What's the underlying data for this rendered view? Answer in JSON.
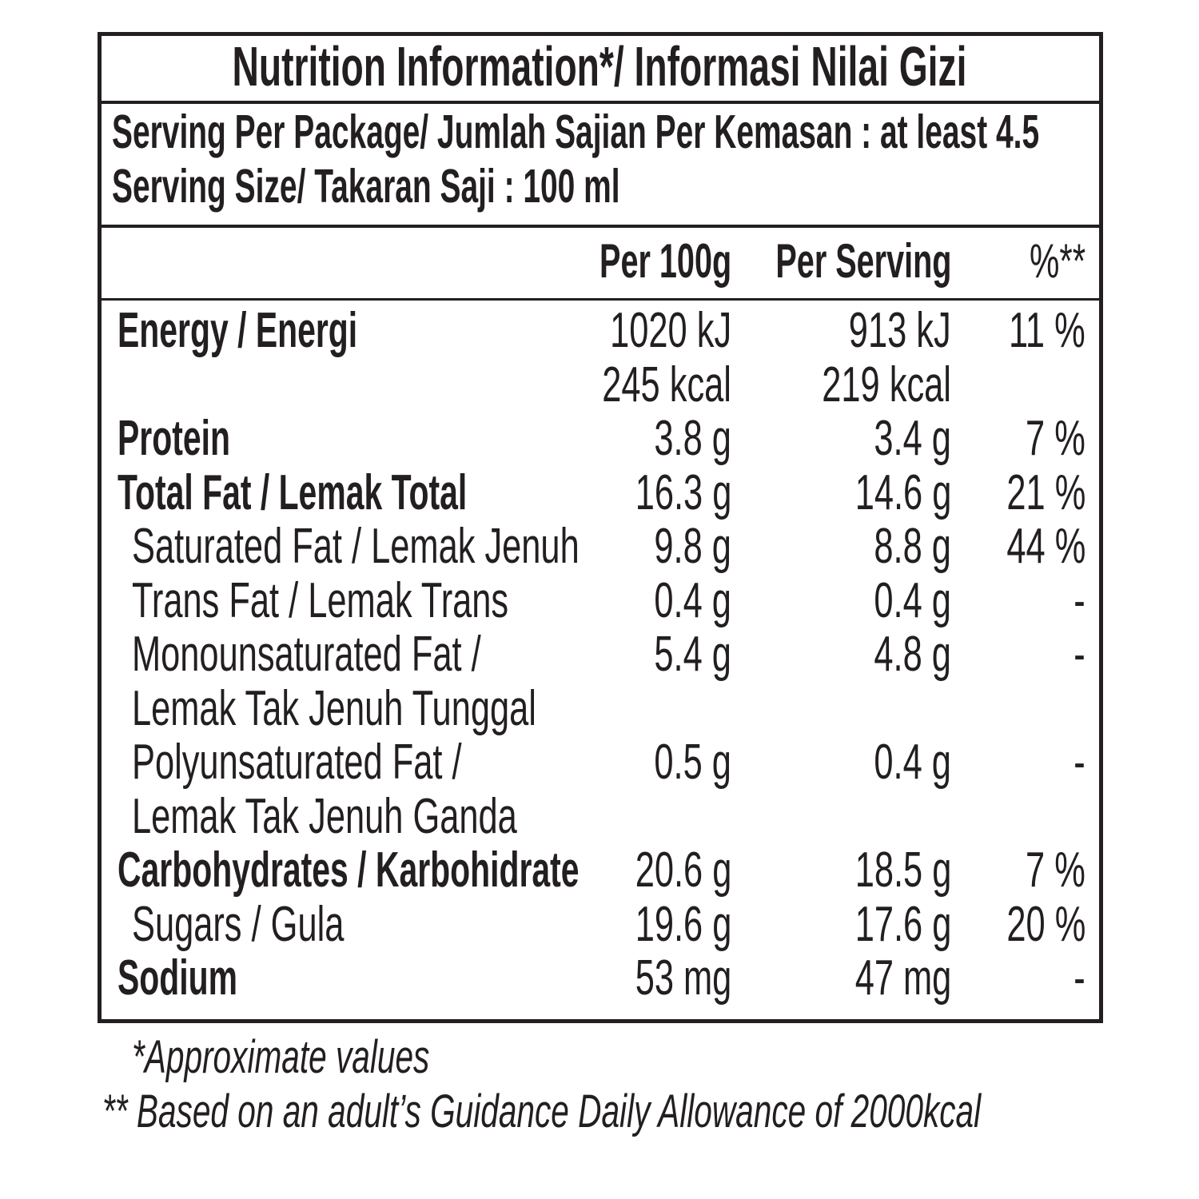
{
  "title": "Nutrition Information*/  Informasi Nilai Gizi",
  "serving_per_package": "Serving Per Package/ Jumlah Sajian Per Kemasan : at least 4.5",
  "serving_size": "Serving Size/ Takaran Saji : 100 ml",
  "columns": {
    "per100": "Per 100g",
    "per_serving": "Per Serving",
    "pct": "%**"
  },
  "rows": [
    {
      "label": "Energy / Energi",
      "bold": true,
      "indent": false,
      "per100": "1020 kJ",
      "per_serving": "913 kJ",
      "pct": "11 %"
    },
    {
      "label": "",
      "bold": false,
      "indent": false,
      "per100": "245 kcal",
      "per_serving": "219 kcal",
      "pct": ""
    },
    {
      "label": "Protein",
      "bold": true,
      "indent": false,
      "per100": "3.8 g",
      "per_serving": "3.4 g",
      "pct": "7 %"
    },
    {
      "label": "Total Fat / Lemak Total",
      "bold": true,
      "indent": false,
      "per100": "16.3 g",
      "per_serving": "14.6 g",
      "pct": "21 %"
    },
    {
      "label": "Saturated Fat / Lemak Jenuh",
      "bold": false,
      "indent": true,
      "per100": "9.8 g",
      "per_serving": "8.8 g",
      "pct": "44 %"
    },
    {
      "label": "Trans Fat / Lemak Trans",
      "bold": false,
      "indent": true,
      "per100": "0.4 g",
      "per_serving": "0.4 g",
      "pct": "-"
    },
    {
      "label": "Monounsaturated Fat /",
      "bold": false,
      "indent": true,
      "per100": "5.4 g",
      "per_serving": "4.8 g",
      "pct": "-"
    },
    {
      "label": "Lemak Tak Jenuh Tunggal",
      "bold": false,
      "indent": true,
      "per100": "",
      "per_serving": "",
      "pct": ""
    },
    {
      "label": "Polyunsaturated Fat /",
      "bold": false,
      "indent": true,
      "per100": "0.5 g",
      "per_serving": "0.4 g",
      "pct": "-"
    },
    {
      "label": "Lemak Tak Jenuh Ganda",
      "bold": false,
      "indent": true,
      "per100": "",
      "per_serving": "",
      "pct": ""
    },
    {
      "label": "Carbohydrates / Karbohidrate",
      "bold": true,
      "indent": false,
      "per100": "20.6 g",
      "per_serving": "18.5 g",
      "pct": "7 %"
    },
    {
      "label": "Sugars / Gula",
      "bold": false,
      "indent": true,
      "per100": "19.6 g",
      "per_serving": "17.6 g",
      "pct": "20 %"
    },
    {
      "label": "Sodium",
      "bold": true,
      "indent": false,
      "per100": "53 mg",
      "per_serving": "47 mg",
      "pct": "-"
    }
  ],
  "footnotes": {
    "approx": "*Approximate values",
    "basis": "** Based on an adult’s Guidance Daily Allowance of 2000kcal"
  }
}
